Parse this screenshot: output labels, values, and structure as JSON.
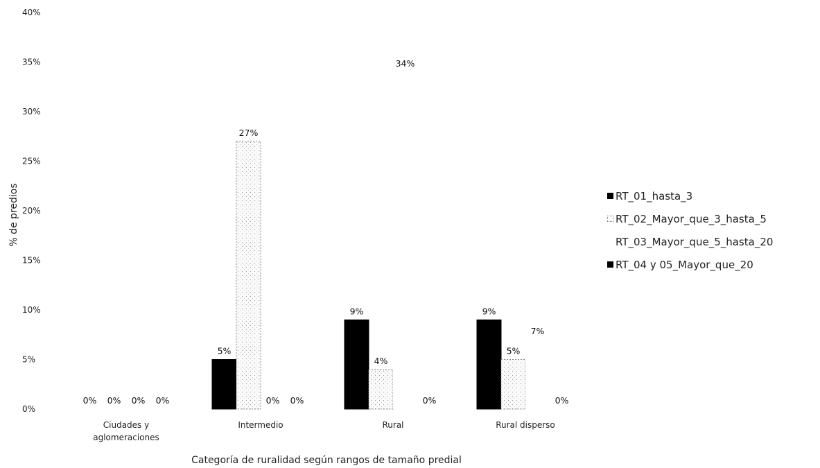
{
  "chart_data": {
    "type": "bar",
    "title": "",
    "xlabel": "Categoría de ruralidad según rangos de tamaño predial",
    "ylabel": "% de predios",
    "ylim": [
      0,
      40
    ],
    "yticks": [
      "0%",
      "5%",
      "10%",
      "15%",
      "20%",
      "25%",
      "30%",
      "35%",
      "40%"
    ],
    "categories": [
      "Ciudades y aglomeraciones",
      "Intermedio",
      "Rural",
      "Rural disperso"
    ],
    "category_lines": [
      [
        "Ciudades y",
        "aglomeraciones"
      ],
      [
        "Intermedio"
      ],
      [
        "Rural"
      ],
      [
        "Rural disperso"
      ]
    ],
    "series": [
      {
        "name": "RT_01_hasta_3",
        "values": [
          0,
          5,
          9,
          9
        ],
        "labels": [
          "0%",
          "5%",
          "9%",
          "9%"
        ],
        "color": "#000000"
      },
      {
        "name": "RT_02_Mayor_que_3_hasta_5",
        "values": [
          0,
          27,
          4,
          5
        ],
        "labels": [
          "0%",
          "27%",
          "4%",
          "5%"
        ],
        "color": "#f4f4f4"
      },
      {
        "name": "RT_03_Mayor_que_5_hasta_20",
        "values": [
          0,
          0,
          34,
          7
        ],
        "labels": [
          "0%",
          "0%",
          "34%",
          "7%"
        ],
        "color": "#ffffff"
      },
      {
        "name": "RT_04 y 05_Mayor_que_20",
        "values": [
          0,
          0,
          0,
          0
        ],
        "labels": [
          "0%",
          "0%",
          "0%",
          "0%"
        ],
        "color": "#000000"
      }
    ],
    "grid": false,
    "legend_position": "right"
  }
}
